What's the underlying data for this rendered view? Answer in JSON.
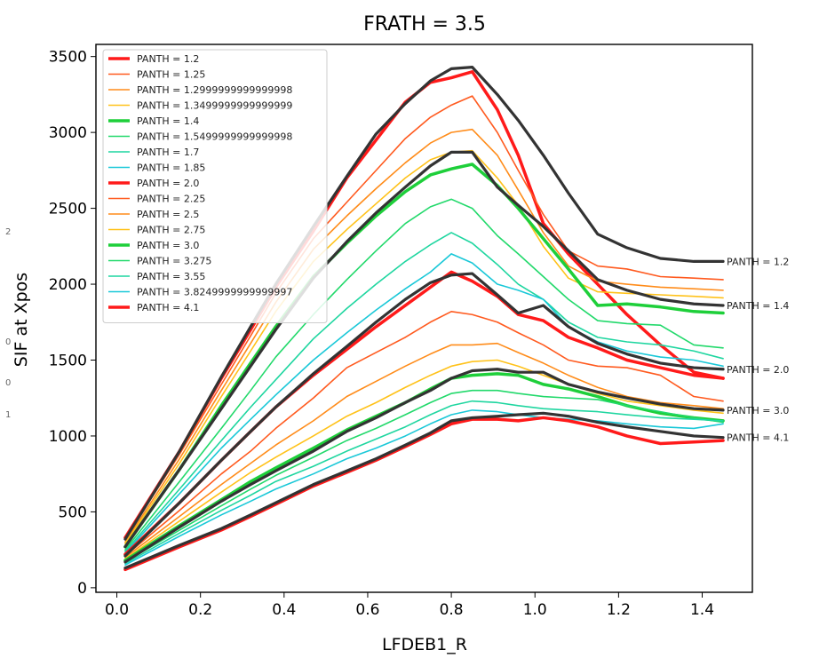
{
  "chart_data": {
    "type": "line",
    "title": "FRATH = 3.5",
    "xlabel": "LFDEB1_R",
    "ylabel": "SIF at Xpos",
    "xlim": [
      -0.05,
      1.52
    ],
    "ylim": [
      -30,
      3580
    ],
    "xticks": [
      "0.0",
      "0.2",
      "0.4",
      "0.6",
      "0.8",
      "1.0",
      "1.2",
      "1.4"
    ],
    "yticks": [
      "0",
      "500",
      "1000",
      "1500",
      "2000",
      "2500",
      "3000",
      "3500"
    ],
    "grid": false,
    "legend_position": "top-left",
    "x": [
      0.02,
      0.15,
      0.25,
      0.32,
      0.38,
      0.47,
      0.55,
      0.62,
      0.69,
      0.75,
      0.8,
      0.85,
      0.91,
      0.96,
      1.02,
      1.08,
      1.15,
      1.22,
      1.3,
      1.38,
      1.45
    ],
    "series": [
      {
        "name": "PANTH = 1.2",
        "color": "#ff1a1a",
        "width": 3.5,
        "values": [
          330,
          900,
          1380,
          1700,
          1980,
          2350,
          2700,
          2950,
          3200,
          3330,
          3360,
          3400,
          3150,
          2850,
          2400,
          2200,
          2000,
          1800,
          1600,
          1420,
          1380
        ]
      },
      {
        "name": "PANTH = 1.25",
        "color": "#ff5a1f",
        "width": 1.6,
        "values": [
          320,
          880,
          1340,
          1660,
          1940,
          2300,
          2540,
          2750,
          2960,
          3100,
          3180,
          3240,
          3000,
          2750,
          2460,
          2220,
          2120,
          2100,
          2050,
          2040,
          2030
        ]
      },
      {
        "name": "PANTH = 1.2999999999999998",
        "color": "#ff8c1a",
        "width": 1.6,
        "values": [
          300,
          850,
          1300,
          1610,
          1880,
          2230,
          2450,
          2630,
          2800,
          2930,
          3000,
          3020,
          2850,
          2620,
          2340,
          2120,
          2020,
          2000,
          1980,
          1970,
          1960
        ]
      },
      {
        "name": "PANTH = 1.3499999999999999",
        "color": "#ffc21a",
        "width": 1.6,
        "values": [
          290,
          820,
          1260,
          1560,
          1820,
          2150,
          2360,
          2530,
          2700,
          2820,
          2870,
          2880,
          2700,
          2520,
          2250,
          2040,
          1950,
          1940,
          1930,
          1920,
          1910
        ]
      },
      {
        "name": "PANTH = 1.4",
        "color": "#1ecf3a",
        "width": 3.5,
        "values": [
          270,
          780,
          1200,
          1480,
          1720,
          2050,
          2270,
          2450,
          2610,
          2720,
          2760,
          2790,
          2650,
          2500,
          2300,
          2100,
          1860,
          1870,
          1850,
          1820,
          1810
        ]
      },
      {
        "name": "PANTH = 1.5499999999999998",
        "color": "#22d96b",
        "width": 1.6,
        "values": [
          250,
          700,
          1050,
          1300,
          1520,
          1800,
          2030,
          2220,
          2400,
          2510,
          2560,
          2500,
          2320,
          2200,
          2050,
          1900,
          1760,
          1740,
          1730,
          1600,
          1580
        ]
      },
      {
        "name": "PANTH = 1.7",
        "color": "#1fd6a0",
        "width": 1.6,
        "values": [
          240,
          650,
          970,
          1190,
          1370,
          1640,
          1840,
          2000,
          2150,
          2260,
          2340,
          2270,
          2130,
          2000,
          1900,
          1750,
          1650,
          1620,
          1600,
          1560,
          1510
        ]
      },
      {
        "name": "PANTH = 1.85",
        "color": "#1ac8d8",
        "width": 1.6,
        "values": [
          230,
          620,
          920,
          1110,
          1270,
          1500,
          1680,
          1830,
          1970,
          2080,
          2200,
          2140,
          2000,
          1960,
          1900,
          1720,
          1620,
          1560,
          1520,
          1500,
          1460
        ]
      },
      {
        "name": "PANTH = 2.0",
        "color": "#ff1a1a",
        "width": 3.5,
        "values": [
          220,
          560,
          840,
          1030,
          1190,
          1400,
          1570,
          1720,
          1860,
          1980,
          2080,
          2020,
          1920,
          1800,
          1760,
          1650,
          1580,
          1500,
          1450,
          1400,
          1380
        ]
      },
      {
        "name": "PANTH = 2.25",
        "color": "#ff5a1f",
        "width": 1.6,
        "values": [
          210,
          510,
          750,
          900,
          1050,
          1250,
          1450,
          1550,
          1650,
          1750,
          1820,
          1800,
          1750,
          1680,
          1600,
          1500,
          1460,
          1450,
          1400,
          1260,
          1230
        ]
      },
      {
        "name": "PANTH = 2.5",
        "color": "#ff8c1a",
        "width": 1.6,
        "values": [
          200,
          470,
          680,
          820,
          940,
          1100,
          1260,
          1360,
          1460,
          1540,
          1600,
          1600,
          1610,
          1550,
          1480,
          1400,
          1320,
          1260,
          1220,
          1200,
          1180
        ]
      },
      {
        "name": "PANTH = 2.75",
        "color": "#ffc21a",
        "width": 1.6,
        "values": [
          190,
          440,
          630,
          760,
          860,
          1000,
          1130,
          1220,
          1320,
          1400,
          1460,
          1490,
          1500,
          1460,
          1400,
          1340,
          1280,
          1230,
          1200,
          1170,
          1150
        ]
      },
      {
        "name": "PANTH = 3.0",
        "color": "#1ecf3a",
        "width": 3.5,
        "values": [
          180,
          410,
          580,
          700,
          790,
          920,
          1040,
          1130,
          1220,
          1310,
          1380,
          1400,
          1410,
          1400,
          1340,
          1310,
          1260,
          1200,
          1150,
          1120,
          1100
        ]
      },
      {
        "name": "PANTH = 3.275",
        "color": "#22d96b",
        "width": 1.6,
        "values": [
          170,
          380,
          540,
          650,
          740,
          860,
          970,
          1050,
          1140,
          1220,
          1280,
          1300,
          1300,
          1280,
          1260,
          1250,
          1240,
          1200,
          1160,
          1120,
          1090
        ]
      },
      {
        "name": "PANTH = 3.55",
        "color": "#1fd6a0",
        "width": 1.6,
        "values": [
          160,
          360,
          510,
          610,
          700,
          800,
          900,
          980,
          1060,
          1140,
          1200,
          1230,
          1220,
          1200,
          1180,
          1170,
          1160,
          1140,
          1120,
          1110,
          1100
        ]
      },
      {
        "name": "PANTH = 3.8249999999999997",
        "color": "#1ac8d8",
        "width": 1.6,
        "values": [
          150,
          340,
          480,
          570,
          650,
          750,
          850,
          920,
          1000,
          1080,
          1140,
          1170,
          1160,
          1140,
          1120,
          1110,
          1100,
          1080,
          1060,
          1050,
          1080
        ]
      },
      {
        "name": "PANTH = 4.1",
        "color": "#ff1a1a",
        "width": 3.5,
        "values": [
          120,
          270,
          380,
          470,
          550,
          670,
          760,
          840,
          930,
          1010,
          1080,
          1110,
          1110,
          1100,
          1120,
          1100,
          1060,
          1000,
          950,
          960,
          970
        ]
      }
    ],
    "reference_lines": [
      {
        "label": "PANTH = 1.2",
        "color": "#333333",
        "values": [
          320,
          900,
          1390,
          1720,
          2000,
          2380,
          2710,
          2990,
          3190,
          3340,
          3420,
          3430,
          3250,
          3080,
          2850,
          2600,
          2330,
          2240,
          2170,
          2150,
          2150
        ]
      },
      {
        "label": "PANTH = 1.4",
        "color": "#333333",
        "values": [
          270,
          780,
          1180,
          1460,
          1700,
          2040,
          2280,
          2470,
          2640,
          2780,
          2870,
          2870,
          2640,
          2520,
          2380,
          2220,
          2030,
          1960,
          1900,
          1870,
          1860
        ]
      },
      {
        "label": "PANTH = 2.0",
        "color": "#333333",
        "values": [
          210,
          560,
          840,
          1030,
          1190,
          1410,
          1590,
          1750,
          1900,
          2010,
          2060,
          2070,
          1930,
          1810,
          1860,
          1720,
          1610,
          1540,
          1480,
          1450,
          1440
        ]
      },
      {
        "label": "PANTH = 3.0",
        "color": "#333333",
        "values": [
          170,
          400,
          570,
          680,
          770,
          900,
          1030,
          1120,
          1220,
          1300,
          1380,
          1430,
          1440,
          1420,
          1420,
          1340,
          1290,
          1250,
          1210,
          1180,
          1170
        ]
      },
      {
        "label": "PANTH = 4.1",
        "color": "#333333",
        "values": [
          130,
          280,
          390,
          480,
          560,
          680,
          770,
          850,
          940,
          1020,
          1100,
          1120,
          1130,
          1140,
          1150,
          1130,
          1090,
          1060,
          1030,
          1000,
          990
        ]
      }
    ],
    "left_margin_labels": [
      "2",
      "0",
      "0",
      "1"
    ]
  }
}
